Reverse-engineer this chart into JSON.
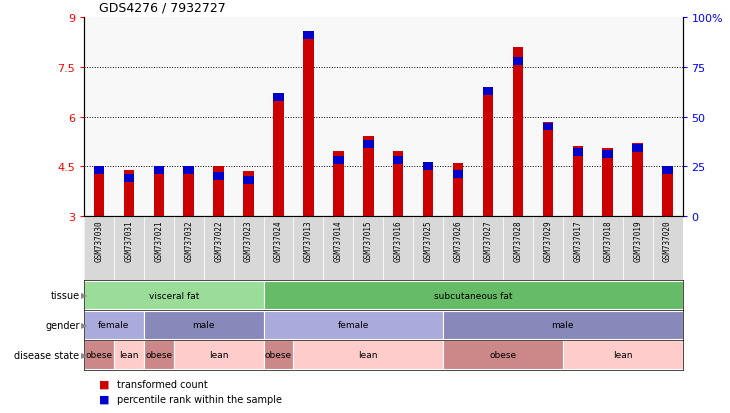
{
  "title": "GDS4276 / 7932727",
  "samples": [
    "GSM737030",
    "GSM737031",
    "GSM737021",
    "GSM737032",
    "GSM737022",
    "GSM737023",
    "GSM737024",
    "GSM737013",
    "GSM737014",
    "GSM737015",
    "GSM737016",
    "GSM737025",
    "GSM737026",
    "GSM737027",
    "GSM737028",
    "GSM737029",
    "GSM737017",
    "GSM737018",
    "GSM737019",
    "GSM737020"
  ],
  "red_values": [
    4.5,
    4.4,
    4.5,
    4.5,
    4.5,
    4.35,
    6.6,
    8.55,
    4.95,
    5.4,
    4.95,
    4.6,
    4.6,
    6.65,
    8.1,
    5.85,
    5.1,
    5.05,
    5.2,
    4.45
  ],
  "blue_values": [
    25,
    21,
    25,
    25,
    22,
    20,
    62,
    93,
    30,
    38,
    30,
    27,
    23,
    65,
    80,
    47,
    34,
    33,
    36,
    25
  ],
  "ylim_left": [
    3,
    9
  ],
  "ylim_right": [
    0,
    100
  ],
  "yticks_left": [
    3,
    4.5,
    6,
    7.5,
    9
  ],
  "yticks_right": [
    0,
    25,
    50,
    75,
    100
  ],
  "ytick_labels_right": [
    "0",
    "25",
    "50",
    "75",
    "100%"
  ],
  "grid_values": [
    4.5,
    6.0,
    7.5
  ],
  "bar_bottom": 3.0,
  "red_color": "#cc0000",
  "blue_color": "#0000cc",
  "tissue_row": {
    "groups": [
      {
        "label": "visceral fat",
        "start": 0,
        "end": 5,
        "color": "#99dd99"
      },
      {
        "label": "subcutaneous fat",
        "start": 6,
        "end": 19,
        "color": "#66bb66"
      }
    ]
  },
  "gender_row": {
    "groups": [
      {
        "label": "female",
        "start": 0,
        "end": 1,
        "color": "#aaaadd"
      },
      {
        "label": "male",
        "start": 2,
        "end": 5,
        "color": "#8888bb"
      },
      {
        "label": "female",
        "start": 6,
        "end": 11,
        "color": "#aaaadd"
      },
      {
        "label": "male",
        "start": 12,
        "end": 19,
        "color": "#8888bb"
      }
    ]
  },
  "disease_row": {
    "groups": [
      {
        "label": "obese",
        "start": 0,
        "end": 0,
        "color": "#cc8888"
      },
      {
        "label": "lean",
        "start": 1,
        "end": 1,
        "color": "#ffcccc"
      },
      {
        "label": "obese",
        "start": 2,
        "end": 2,
        "color": "#cc8888"
      },
      {
        "label": "lean",
        "start": 3,
        "end": 5,
        "color": "#ffcccc"
      },
      {
        "label": "obese",
        "start": 6,
        "end": 6,
        "color": "#cc8888"
      },
      {
        "label": "lean",
        "start": 7,
        "end": 11,
        "color": "#ffcccc"
      },
      {
        "label": "obese",
        "start": 12,
        "end": 15,
        "color": "#cc8888"
      },
      {
        "label": "lean",
        "start": 16,
        "end": 19,
        "color": "#ffcccc"
      }
    ]
  },
  "row_labels": [
    "tissue",
    "gender",
    "disease state"
  ],
  "legend_items": [
    {
      "color": "#cc0000",
      "label": "transformed count"
    },
    {
      "color": "#0000cc",
      "label": "percentile rank within the sample"
    }
  ],
  "bar_bg_color": "#dddddd",
  "fig_bg_color": "#ffffff"
}
